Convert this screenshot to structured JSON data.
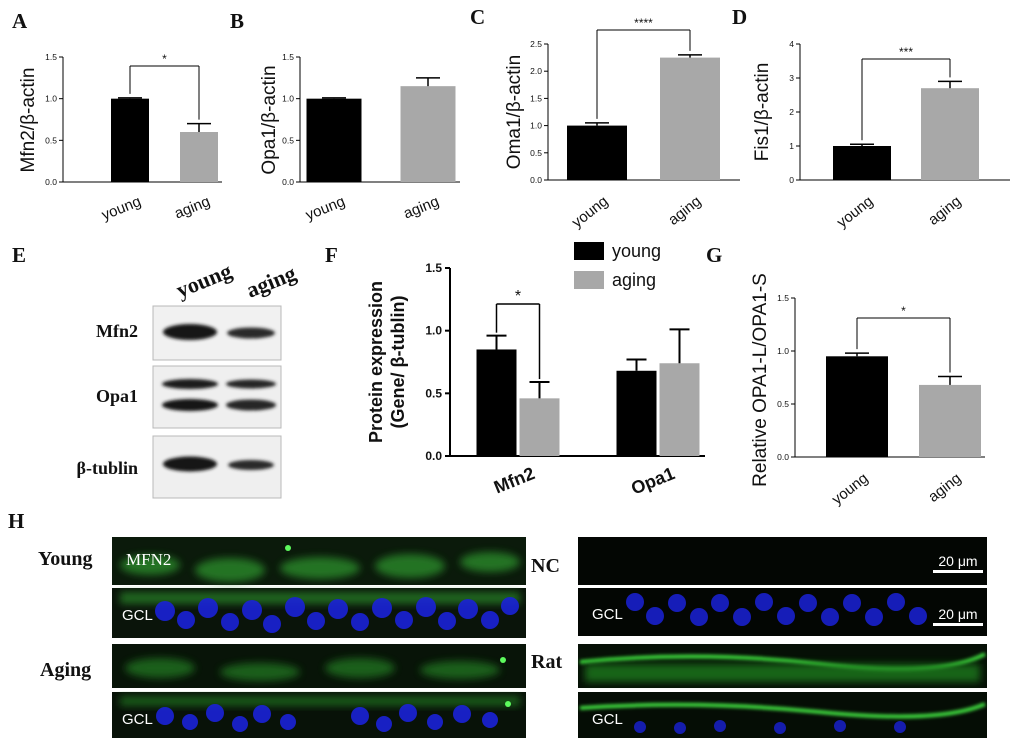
{
  "colors": {
    "young": "#000000",
    "aging": "#a8a8a8",
    "axis": "#000000",
    "nuclei": "#1a22d8",
    "signal": "#2fbf2f",
    "panel_bg": "#050805"
  },
  "chart_data": [
    {
      "id": "A",
      "type": "bar",
      "panel_label": "A",
      "ylabel": "Mfn2/β-actin",
      "categories": [
        "young",
        "aging"
      ],
      "values": [
        1.0,
        0.6
      ],
      "errors": [
        0.01,
        0.1
      ],
      "ylim": [
        0,
        1.5
      ],
      "yticks": [
        "0.0",
        "0.5",
        "1.0",
        "1.5"
      ],
      "significance": [
        {
          "from": 0,
          "to": 1,
          "label": "*"
        }
      ]
    },
    {
      "id": "B",
      "type": "bar",
      "panel_label": "B",
      "ylabel": "Opa1/β-actin",
      "categories": [
        "young",
        "aging"
      ],
      "values": [
        1.0,
        1.15
      ],
      "errors": [
        0.01,
        0.1
      ],
      "ylim": [
        0,
        1.5
      ],
      "yticks": [
        "0.0",
        "0.5",
        "1.0",
        "1.5"
      ],
      "significance": []
    },
    {
      "id": "C",
      "type": "bar",
      "panel_label": "C",
      "ylabel": "Oma1/β-actin",
      "categories": [
        "young",
        "aging"
      ],
      "values": [
        1.0,
        2.25
      ],
      "errors": [
        0.05,
        0.05
      ],
      "ylim": [
        0,
        2.5
      ],
      "yticks": [
        "0.0",
        "0.5",
        "1.0",
        "1.5",
        "2.0",
        "2.5"
      ],
      "significance": [
        {
          "from": 0,
          "to": 1,
          "label": "****"
        }
      ]
    },
    {
      "id": "D",
      "type": "bar",
      "panel_label": "D",
      "ylabel": "Fis1/β-actin",
      "categories": [
        "young",
        "aging"
      ],
      "values": [
        1.0,
        2.7
      ],
      "errors": [
        0.05,
        0.2
      ],
      "ylim": [
        0,
        4
      ],
      "yticks": [
        "0",
        "1",
        "2",
        "3",
        "4"
      ],
      "significance": [
        {
          "from": 0,
          "to": 1,
          "label": "***"
        }
      ]
    },
    {
      "id": "F",
      "type": "bar",
      "panel_label": "F",
      "ylabel_lines": [
        "Protein expression",
        "(Gene/ β-tublin)"
      ],
      "categories": [
        "Mfn2",
        "Opa1"
      ],
      "series": [
        {
          "name": "young",
          "values": [
            0.85,
            0.68
          ],
          "errors": [
            0.11,
            0.09
          ]
        },
        {
          "name": "aging",
          "values": [
            0.46,
            0.74
          ],
          "errors": [
            0.13,
            0.27
          ]
        }
      ],
      "ylim": [
        0,
        1.5
      ],
      "yticks": [
        "0.0",
        "0.5",
        "1.0",
        "1.5"
      ],
      "legend": "top-right",
      "significance": [
        {
          "label": "*"
        }
      ]
    },
    {
      "id": "G",
      "type": "bar",
      "panel_label": "G",
      "ylabel": "Relative OPA1-L/OPA1-S",
      "categories": [
        "young",
        "aging"
      ],
      "values": [
        0.95,
        0.68
      ],
      "errors": [
        0.03,
        0.08
      ],
      "ylim": [
        0,
        1.5
      ],
      "yticks": [
        "0.0",
        "0.5",
        "1.0",
        "1.5"
      ],
      "significance": [
        {
          "from": 0,
          "to": 1,
          "label": "*"
        }
      ]
    }
  ],
  "western_blot": {
    "panel_label": "E",
    "lanes": [
      "young",
      "aging"
    ],
    "proteins": [
      "Mfn2",
      "Opa1",
      "β-tublin"
    ]
  },
  "immunofluorescence": {
    "panel_label": "H",
    "stain_label": "MFN2",
    "layer_label": "GCL",
    "scale_bar": "20 μm",
    "groups": [
      "Young",
      "Aging",
      "NC",
      "Rat"
    ]
  }
}
